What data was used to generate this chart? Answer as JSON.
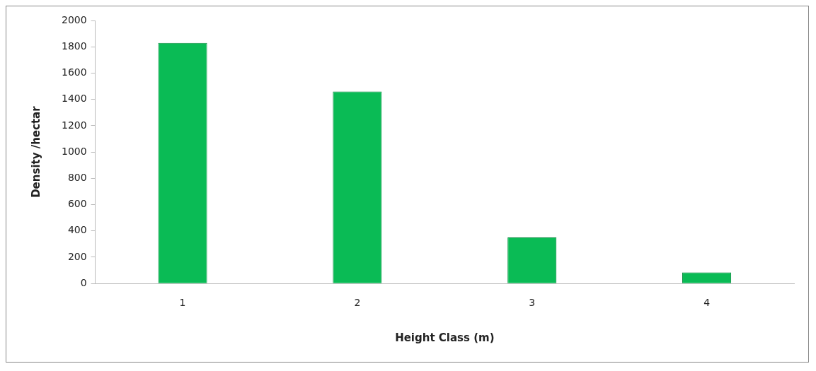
{
  "chart_data": {
    "type": "bar",
    "xlabel": "Height Class (m)",
    "ylabel": "Density /hectar",
    "categories": [
      "1",
      "2",
      "3",
      "4"
    ],
    "values": [
      1830,
      1460,
      350,
      85
    ],
    "color": "#0abb55",
    "ylim": [
      0,
      2000
    ],
    "yticks": [
      0,
      200,
      400,
      600,
      800,
      1000,
      1200,
      1400,
      1600,
      1800,
      2000
    ],
    "grid": false,
    "legend": false
  }
}
